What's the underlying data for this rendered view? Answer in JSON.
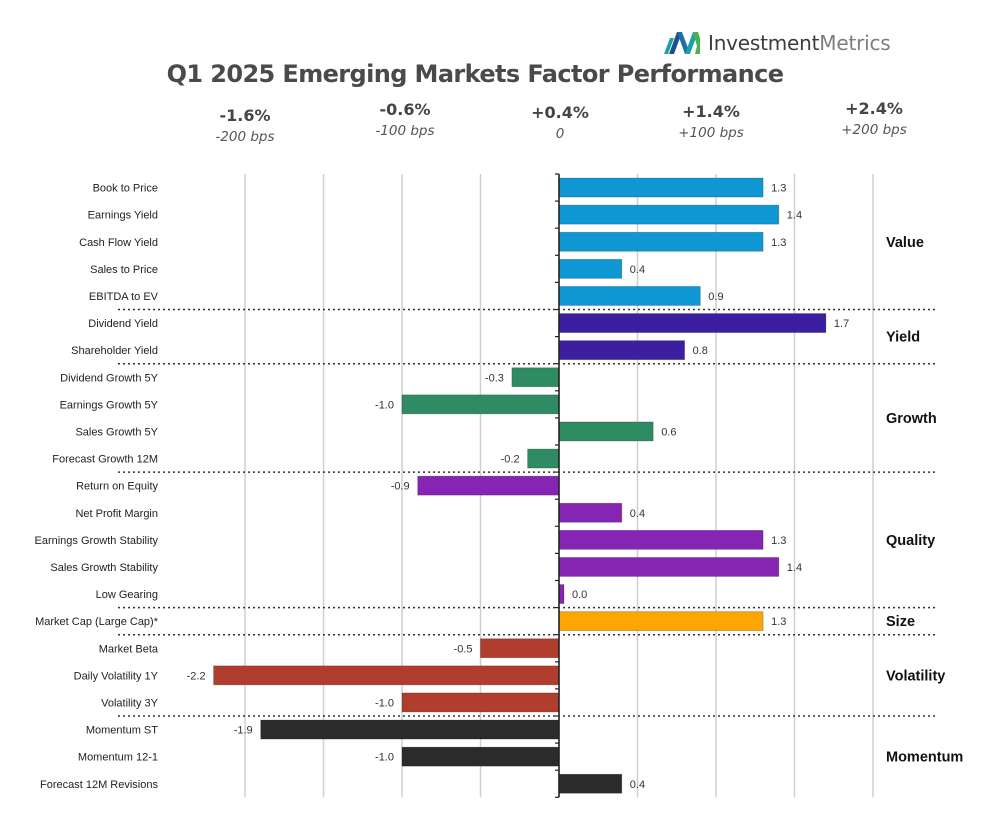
{
  "logo": {
    "icon": "investmentmetrics-logo-icon",
    "brand_bold": "Investment",
    "brand_light": "Metrics",
    "colors": {
      "dark_blue": "#1d4f8c",
      "teal": "#1aa3a8",
      "green": "#4cb050"
    }
  },
  "top_scale": [
    {
      "pct": "-1.6%",
      "bps": "-200 bps"
    },
    {
      "pct": "-0.6%",
      "bps": "-100 bps"
    },
    {
      "pct": "+0.4%",
      "bps": "0"
    },
    {
      "pct": "+1.4%",
      "bps": "+100 bps"
    },
    {
      "pct": "+2.4%",
      "bps": "+200 bps"
    }
  ],
  "chart_data": {
    "type": "bar",
    "orientation": "horizontal",
    "title": "Q1 2025 Emerging Markets Factor Performance",
    "xlabel": "",
    "ylabel": "",
    "xlim": [
      -2.5,
      2.0
    ],
    "grid": true,
    "gridline_step": 0.5,
    "groups": [
      {
        "name": "Value",
        "color": "#0f97d3",
        "factors": [
          {
            "label": "Book to Price",
            "value": 1.3
          },
          {
            "label": "Earnings Yield",
            "value": 1.4
          },
          {
            "label": "Cash Flow Yield",
            "value": 1.3
          },
          {
            "label": "Sales to Price",
            "value": 0.4
          },
          {
            "label": "EBITDA to EV",
            "value": 0.9
          }
        ]
      },
      {
        "name": "Yield",
        "color": "#3b1fa0",
        "factors": [
          {
            "label": "Dividend Yield",
            "value": 1.7
          },
          {
            "label": "Shareholder Yield",
            "value": 0.8
          }
        ]
      },
      {
        "name": "Growth",
        "color": "#2e8b62",
        "factors": [
          {
            "label": "Dividend Growth 5Y",
            "value": -0.3
          },
          {
            "label": "Earnings Growth 5Y",
            "value": -1.0
          },
          {
            "label": "Sales Growth 5Y",
            "value": 0.6
          },
          {
            "label": "Forecast Growth 12M",
            "value": -0.2
          }
        ]
      },
      {
        "name": "Quality",
        "color": "#8624b3",
        "factors": [
          {
            "label": "Return on Equity",
            "value": -0.9
          },
          {
            "label": "Net Profit Margin",
            "value": 0.4
          },
          {
            "label": "Earnings Growth Stability",
            "value": 1.3
          },
          {
            "label": "Sales Growth Stability",
            "value": 1.4
          },
          {
            "label": "Low Gearing",
            "value": 0.0
          }
        ]
      },
      {
        "name": "Size",
        "color": "#ffa500",
        "factors": [
          {
            "label": "Market Cap (Large Cap)*",
            "value": 1.3
          }
        ]
      },
      {
        "name": "Volatility",
        "color": "#b03d2e",
        "factors": [
          {
            "label": "Market Beta",
            "value": -0.5
          },
          {
            "label": "Daily Volatility 1Y",
            "value": -2.2
          },
          {
            "label": "Volatility 3Y",
            "value": -1.0
          }
        ]
      },
      {
        "name": "Momentum",
        "color": "#2b2b2b",
        "factors": [
          {
            "label": "Momentum ST",
            "value": -1.9
          },
          {
            "label": "Momentum 12-1",
            "value": -1.0
          },
          {
            "label": "Forecast 12M Revisions",
            "value": 0.4
          }
        ]
      }
    ]
  }
}
